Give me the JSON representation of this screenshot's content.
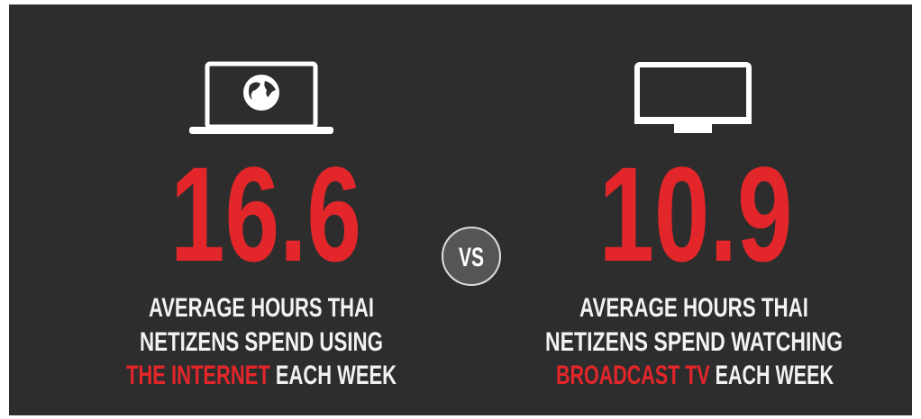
{
  "left": {
    "number": "16.6",
    "lines": [
      "AVERAGE HOURS THAI",
      "NETIZENS SPEND USING"
    ],
    "highlight": "THE INTERNET",
    "tail": "EACH WEEK"
  },
  "vs": "VS",
  "right": {
    "number": "10.9",
    "lines": [
      "AVERAGE HOURS THAI",
      "NETIZENS SPEND WATCHING"
    ],
    "highlight": "BROADCAST TV",
    "tail": "EACH WEEK"
  }
}
